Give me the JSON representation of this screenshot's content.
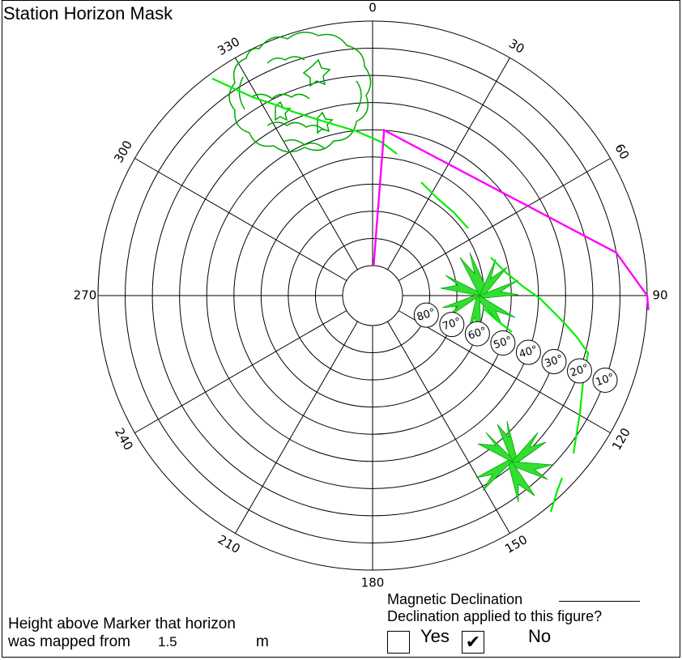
{
  "title": "Station Horizon Mask",
  "azimuth_labels": [
    "0",
    "30",
    "60",
    "90",
    "120",
    "150",
    "180",
    "210",
    "240",
    "270",
    "300",
    "330"
  ],
  "elevation_labels": [
    "80°",
    "70°",
    "60°",
    "50°",
    "40°",
    "30°",
    "20°",
    "10°"
  ],
  "mask_points": [
    {
      "azimuth": 2,
      "elevation": 90
    },
    {
      "azimuth": 4,
      "elevation": 40
    },
    {
      "azimuth": 80,
      "elevation": 10
    },
    {
      "azimuth": 90,
      "elevation": 0
    }
  ],
  "horizon_line_color": "#ff00ff",
  "vegetation_color": "#00dd00",
  "tree_outline_color": "#00aa00",
  "height_above_marker": {
    "line1": "Height above Marker that horizon",
    "line2": "was mapped from",
    "value": "1.5",
    "unit": "m"
  },
  "magnetic_declination": {
    "label": "Magnetic Declination",
    "value": ""
  },
  "declination_applied": {
    "question": "Declination applied to this figure?",
    "yes_label": "Yes",
    "no_label": "No",
    "yes_checked": false,
    "no_checked": true,
    "check_glyph": "✔"
  }
}
